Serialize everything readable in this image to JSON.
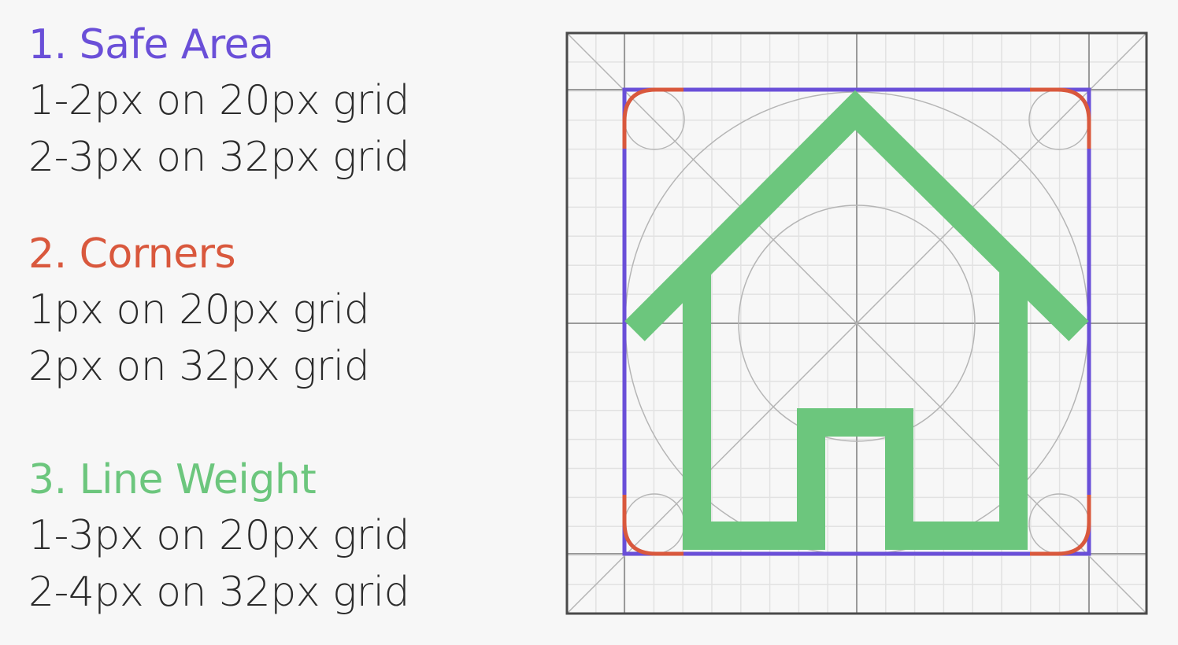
{
  "guidelines": {
    "sections": [
      {
        "id": "safe-area",
        "title": "1. Safe Area",
        "color": "#6a4fd8",
        "lines": [
          "1-2px on 20px grid",
          "2-3px on 32px grid"
        ]
      },
      {
        "id": "corners",
        "title": "2. Corners",
        "color": "#d9583d",
        "lines": [
          "1px on 20px grid",
          "2px on 32px grid"
        ]
      },
      {
        "id": "line-weight",
        "title": "3. Line Weight",
        "color": "#6cc67d",
        "lines": [
          "1-3px on 20px grid",
          "2-4px on 32px grid"
        ]
      }
    ]
  },
  "diagram": {
    "icon": "house-icon",
    "colors": {
      "safe_area": "#6a4fd8",
      "corners": "#d9583d",
      "stroke": "#6cc67d",
      "grid_fine": "#e2e2e2",
      "grid_major": "#9a9a9a",
      "frame": "#4a4a4a",
      "guides": "#b5b5b5"
    }
  }
}
